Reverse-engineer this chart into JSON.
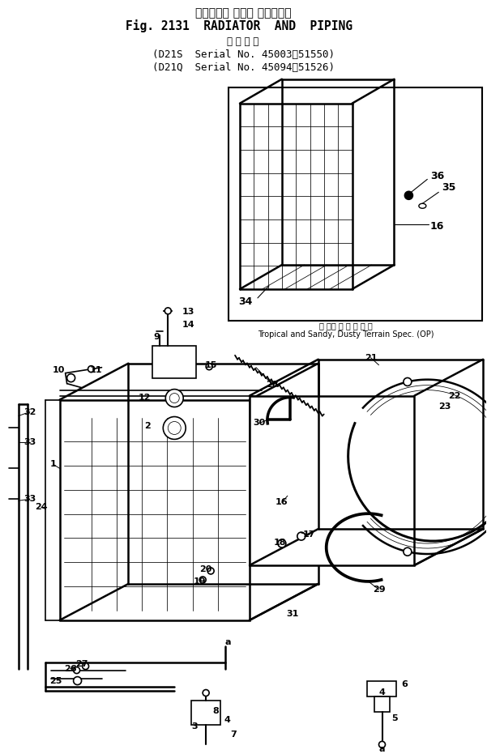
{
  "bg_color": "#ffffff",
  "title_jp": "ラジエータ および パイピング",
  "title_en": "Fig. 2131  RADIATOR  AND  PIPING",
  "subtitle_jp": "適 用 号 機",
  "subtitle_line1": "(D21S  Serial No. 45003～51550)",
  "subtitle_line2": "(D21Q  Serial No. 45094～51526)",
  "tropical_jp": "熱 帯、 砂 漠 地 仕 様",
  "tropical_en": "Tropical and Sandy, Dusty Terrain Spec. (OP)",
  "fig_width": 6.01,
  "fig_height": 9.31,
  "dpi": 100
}
